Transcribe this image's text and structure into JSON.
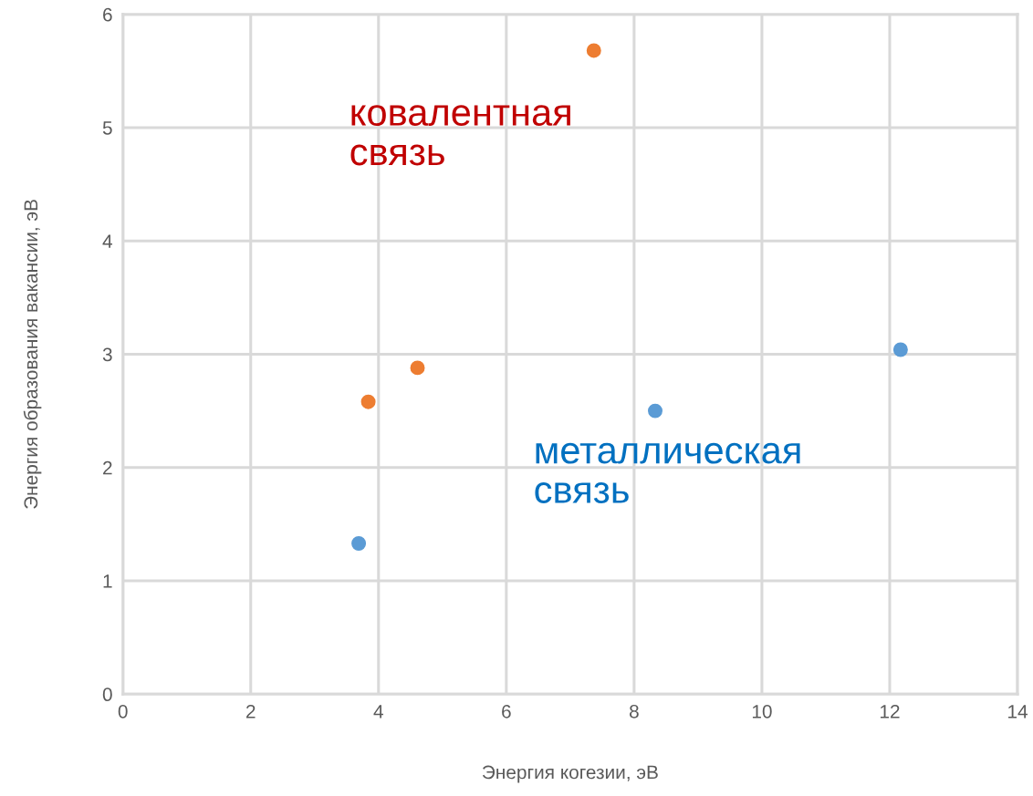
{
  "chart_data": {
    "type": "scatter",
    "xlabel": "Энергия когезии, эВ",
    "ylabel": "Энергия образования вакансии, эВ",
    "series": [
      {
        "color": "#ed7d31",
        "x": [
          7.37,
          3.84,
          4.61
        ],
        "values": [
          5.68,
          2.58,
          2.88
        ]
      },
      {
        "color": "#5b9bd5",
        "x": [
          3.69,
          8.33,
          12.17
        ],
        "values": [
          1.33,
          2.5,
          3.04
        ]
      }
    ],
    "annotations": [
      "ковалентная\nсвязь",
      "металлическая\nсвязь"
    ],
    "xlim": [
      0,
      14
    ],
    "xticks": [
      0,
      2,
      4,
      6,
      8,
      10,
      12,
      14
    ],
    "ylim": [
      0,
      6
    ],
    "yticks": [
      0,
      1,
      2,
      3,
      4,
      5,
      6
    ],
    "grid": true,
    "legend": false,
    "marker": "circle"
  }
}
